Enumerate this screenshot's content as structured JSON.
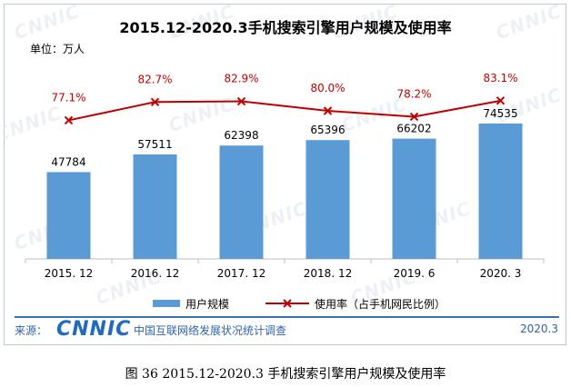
{
  "title": "2015.12-2020.3手机搜索引擎用户规模及使用率",
  "unit_label": "单位：万人",
  "chart_data": {
    "type": "bar",
    "categories": [
      "2015. 12",
      "2016. 12",
      "2017. 12",
      "2018. 12",
      "2019. 6",
      "2020. 3"
    ],
    "series": [
      {
        "name": "用户规模",
        "type": "bar",
        "values": [
          47784,
          57511,
          62398,
          65396,
          66202,
          74535
        ],
        "color": "#5b9bd5"
      },
      {
        "name": "使用率（占手机网民比例）",
        "type": "line",
        "values": [
          77.1,
          82.7,
          82.9,
          80.0,
          78.2,
          83.1
        ],
        "labels": [
          "77.1%",
          "82.7%",
          "82.9%",
          "80.0%",
          "78.2%",
          "83.1%"
        ],
        "color": "#c00000"
      }
    ],
    "title": "2015.12-2020.3手机搜索引擎用户规模及使用率",
    "ylabel": "单位：万人",
    "legend": "bottom",
    "grid": false
  },
  "legend": {
    "bar_label": "用户规模",
    "line_label": "使用率（占手机网民比例）"
  },
  "footer": {
    "source_label": "来源：",
    "logo_text": "CNNIC",
    "org_text": "中国互联网络发展状况统计调查",
    "date": "2020.3"
  },
  "watermark_text": "CNNIC",
  "caption": "图 36   2015.12-2020.3 手机搜索引擎用户规模及使用率"
}
